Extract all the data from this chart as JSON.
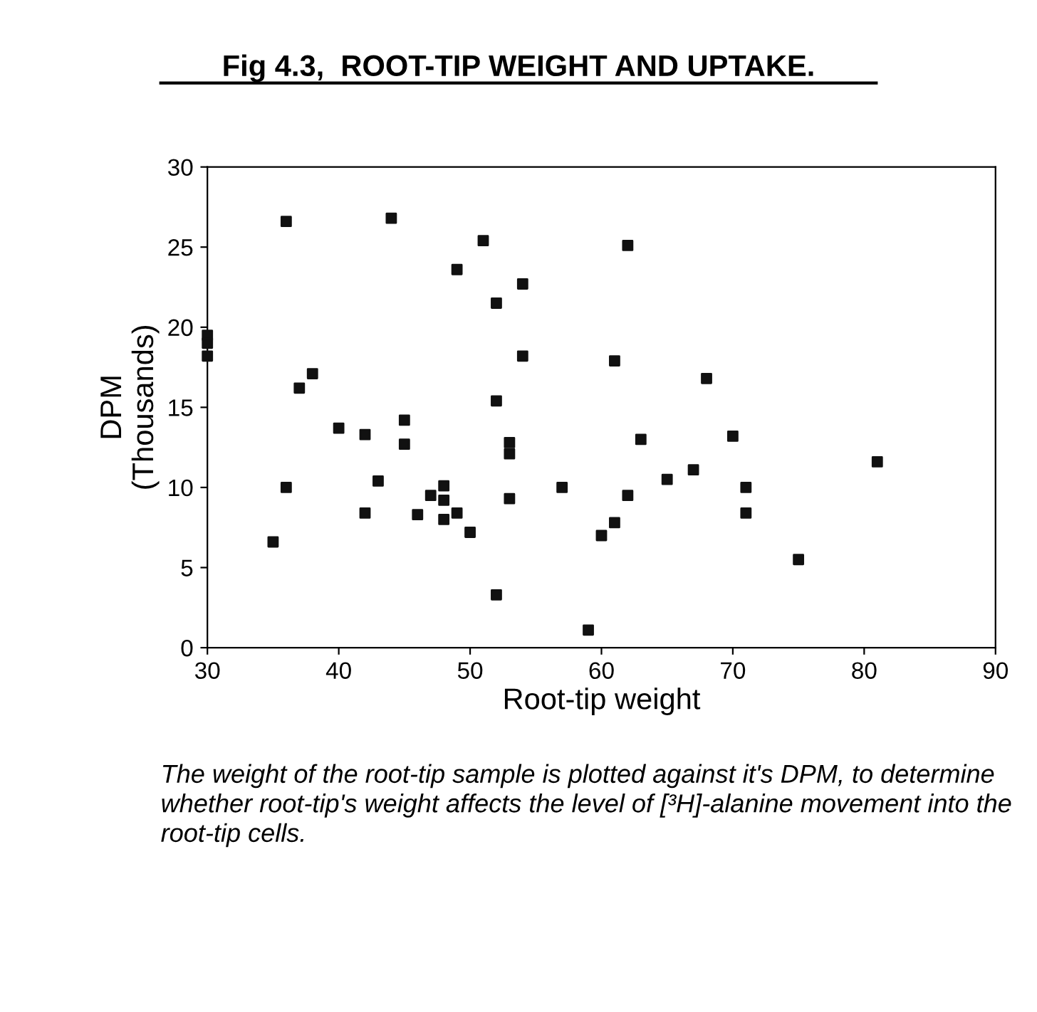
{
  "chart_data": {
    "type": "scatter",
    "title": "Fig 4.3,  ROOT-TIP WEIGHT AND UPTAKE.",
    "xlabel": "Root-tip weight",
    "ylabel": "DPM\n(Thousands)",
    "annotations": [
      "The weight of the root-tip sample is plotted against it's DPM, to determine whether root-tip's weight affects the level of [³H]-alanine movement into the root-tip cells."
    ],
    "x": [
      30,
      30,
      30,
      36,
      44,
      51,
      62,
      49,
      54,
      52,
      54,
      38,
      37,
      61,
      68,
      52,
      40,
      45,
      42,
      45,
      53,
      53,
      63,
      70,
      81,
      43,
      36,
      57,
      48,
      47,
      48,
      53,
      71,
      67,
      65,
      62,
      42,
      46,
      49,
      48,
      71,
      50,
      61,
      60,
      35,
      75,
      52,
      59
    ],
    "values": [
      19.5,
      19.0,
      18.2,
      26.6,
      26.8,
      25.4,
      25.1,
      23.6,
      22.7,
      21.5,
      18.2,
      17.1,
      16.2,
      17.9,
      16.8,
      15.4,
      13.7,
      14.2,
      13.3,
      12.7,
      12.8,
      12.1,
      13.0,
      13.2,
      11.6,
      10.4,
      10.0,
      10.0,
      10.1,
      9.5,
      9.2,
      9.3,
      10.0,
      11.1,
      10.5,
      9.5,
      8.4,
      8.3,
      8.4,
      8.0,
      8.4,
      7.2,
      7.8,
      7.0,
      6.6,
      5.5,
      3.3,
      1.1
    ],
    "color": "#111111",
    "marker": "square",
    "grid": false,
    "legend": false,
    "xlim": [
      30,
      90
    ],
    "xticks": [
      30,
      40,
      50,
      60,
      70,
      80,
      90
    ],
    "ylim": [
      0,
      30
    ],
    "yticks": [
      0,
      5,
      10,
      15,
      20,
      25,
      30
    ]
  }
}
